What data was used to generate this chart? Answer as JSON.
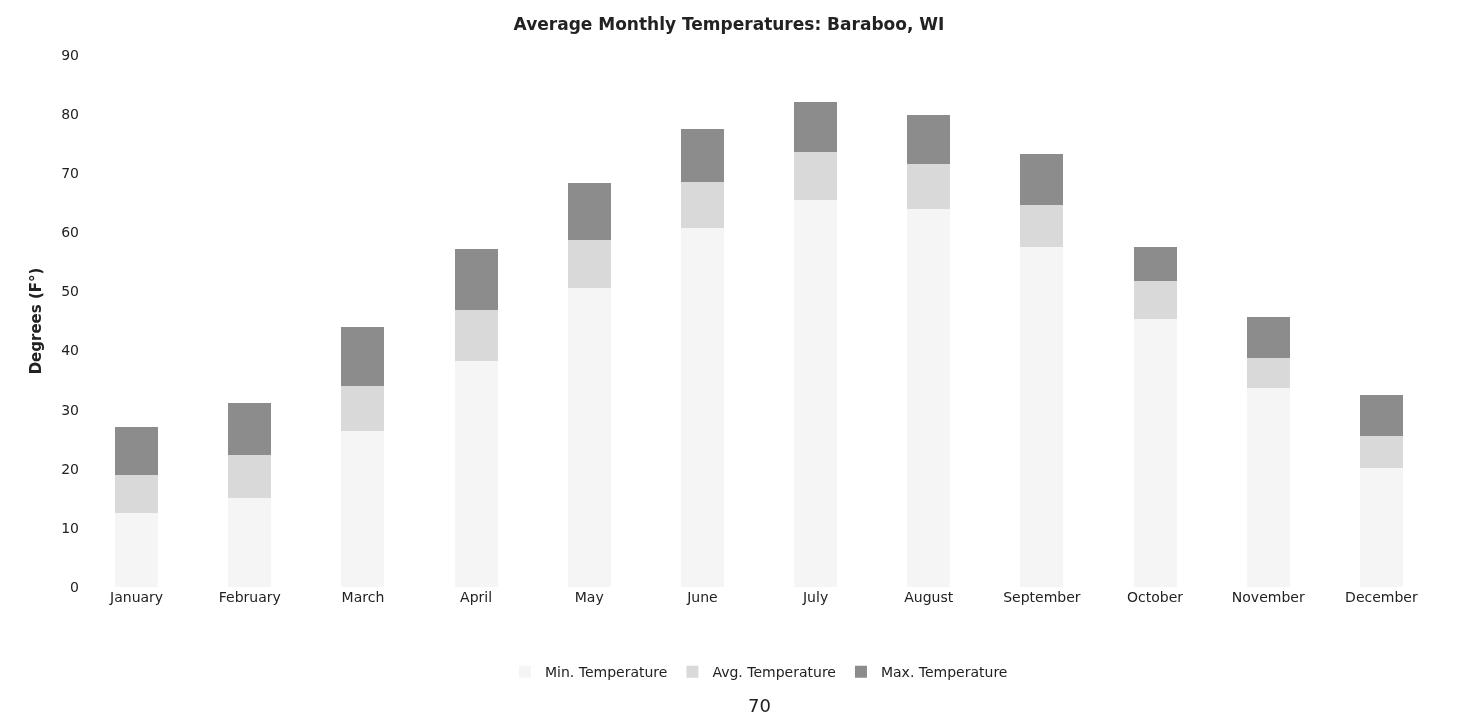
{
  "chart_data": {
    "type": "bar",
    "title": "Average Monthly Temperatures: Baraboo, WI",
    "ylabel": "Degrees (F°)",
    "stacked": true,
    "categories": [
      "January",
      "February",
      "March",
      "April",
      "May",
      "June",
      "July",
      "August",
      "September",
      "October",
      "November",
      "December"
    ],
    "series": [
      {
        "name": "Min. Temperature",
        "color": "#f5f5f5",
        "values": [
          12.5,
          15.0,
          26.4,
          38.2,
          50.5,
          60.8,
          65.4,
          64.0,
          57.5,
          45.4,
          33.6,
          20.1
        ]
      },
      {
        "name": "Avg. Temperature",
        "color": "#d9d9d9",
        "values": [
          6.4,
          7.3,
          7.6,
          8.6,
          8.2,
          7.8,
          8.2,
          7.5,
          7.1,
          6.3,
          5.1,
          5.4
        ]
      },
      {
        "name": "Max. Temperature",
        "color": "#8c8c8c",
        "values": [
          8.1,
          8.9,
          10.0,
          10.4,
          9.7,
          8.9,
          8.5,
          8.3,
          8.7,
          5.9,
          7.0,
          6.9
        ]
      }
    ],
    "ylim": [
      0,
      90
    ],
    "yticks": [
      0,
      10,
      20,
      30,
      40,
      50,
      60,
      70,
      80,
      90
    ],
    "legend": "bottom",
    "annotations": [
      "70"
    ]
  }
}
